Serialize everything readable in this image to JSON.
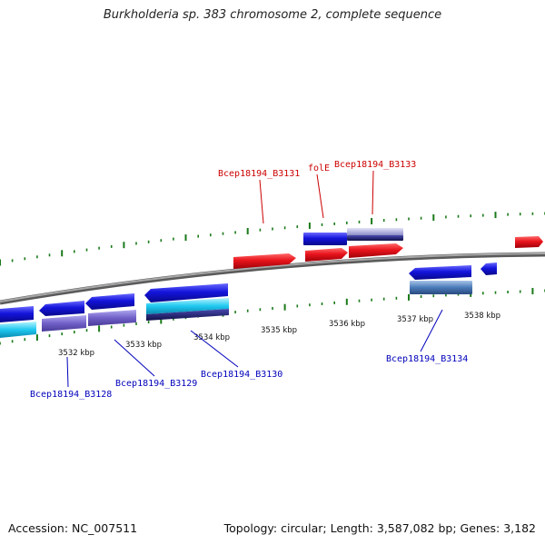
{
  "title": "Burkholderia sp. 383 chromosome 2, complete sequence",
  "footer": {
    "accession": "Accession: NC_007511",
    "topology": "Topology: circular; Length: 3,587,082 bp; Genes: 3,182"
  },
  "ruler": {
    "labels": [
      "3532 kbp",
      "3533 kbp",
      "3534 kbp",
      "3535 kbp",
      "3536 kbp",
      "3537 kbp",
      "3538 kbp"
    ]
  },
  "colors": {
    "plus_strand": "#e8141c",
    "minus_strand": "#1414dc",
    "backbone": "#8a8a8a",
    "tick": "#1a7a1a",
    "plus_label": "#cc0000",
    "minus_label": "#0000bb",
    "cyan": "#1fc8f0",
    "purple": "#7060c8",
    "steel": "#4a7ab8",
    "lavender": "#b0b0e0"
  },
  "gene_labels": {
    "top": [
      "Bcep18194_B3131",
      "folE",
      "Bcep18194_B3133"
    ],
    "bottom": [
      "Bcep18194_B3128",
      "Bcep18194_B3129",
      "Bcep18194_B3130",
      "Bcep18194_B3134"
    ]
  }
}
